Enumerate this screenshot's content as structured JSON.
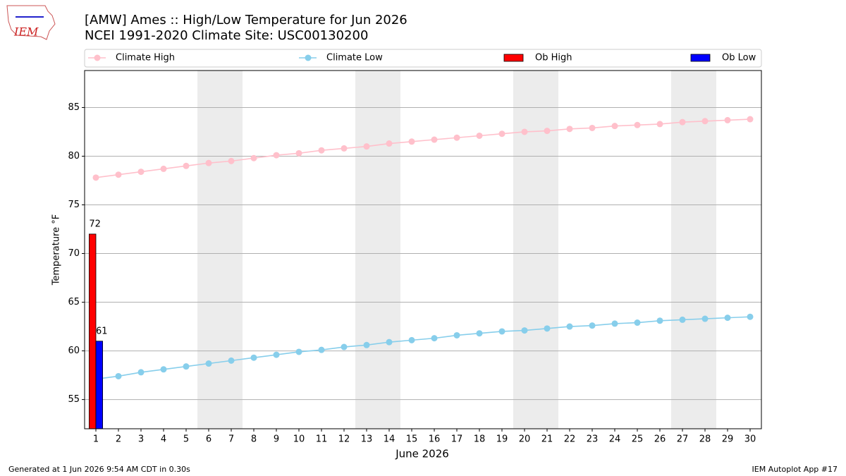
{
  "header": {
    "logo": "IEM"
  },
  "chart_data": {
    "type": "line",
    "title": "[AMW] Ames :: High/Low Temperature for Jun 2026",
    "subtitle": "NCEI 1991-2020 Climate Site: USC00130200",
    "x_label": "June 2026",
    "y_label": "Temperature °F",
    "x": [
      1,
      2,
      3,
      4,
      5,
      6,
      7,
      8,
      9,
      10,
      11,
      12,
      13,
      14,
      15,
      16,
      17,
      18,
      19,
      20,
      21,
      22,
      23,
      24,
      25,
      26,
      27,
      28,
      29,
      30
    ],
    "xlim": [
      0.5,
      30.5
    ],
    "ylim": [
      52,
      88.8
    ],
    "xticks": [
      1,
      2,
      3,
      4,
      5,
      6,
      7,
      8,
      9,
      10,
      11,
      12,
      13,
      14,
      15,
      16,
      17,
      18,
      19,
      20,
      21,
      22,
      23,
      24,
      25,
      26,
      27,
      28,
      29,
      30
    ],
    "yticks": [
      55,
      60,
      65,
      70,
      75,
      80,
      85
    ],
    "grid": "y",
    "shaded_spans": [
      [
        5.5,
        7.5
      ],
      [
        12.5,
        14.5
      ],
      [
        19.5,
        21.5
      ],
      [
        26.5,
        28.5
      ]
    ],
    "series": [
      {
        "name": "Climate High",
        "color": "#ffc0cb",
        "values": [
          77.8,
          78.1,
          78.4,
          78.7,
          79.0,
          79.3,
          79.5,
          79.8,
          80.1,
          80.3,
          80.6,
          80.8,
          81.0,
          81.3,
          81.5,
          81.7,
          81.9,
          82.1,
          82.3,
          82.5,
          82.6,
          82.8,
          82.9,
          83.1,
          83.2,
          83.3,
          83.5,
          83.6,
          83.7,
          83.8
        ]
      },
      {
        "name": "Climate Low",
        "color": "#87ceeb",
        "values": [
          57.1,
          57.4,
          57.8,
          58.1,
          58.4,
          58.7,
          59.0,
          59.3,
          59.6,
          59.9,
          60.1,
          60.4,
          60.6,
          60.9,
          61.1,
          61.3,
          61.6,
          61.8,
          62.0,
          62.1,
          62.3,
          62.5,
          62.6,
          62.8,
          62.9,
          63.1,
          63.2,
          63.3,
          63.4,
          63.5
        ]
      },
      {
        "name": "Ob High",
        "type": "bar",
        "color": "#ff0000",
        "x": [
          1
        ],
        "values": [
          72
        ]
      },
      {
        "name": "Ob Low",
        "type": "bar",
        "color": "#0000ff",
        "x": [
          1
        ],
        "values": [
          61
        ]
      }
    ]
  },
  "footer": {
    "left": "Generated at 1 Jun 2026 9:54 AM CDT in 0.30s",
    "right": "IEM Autoplot App #17"
  }
}
